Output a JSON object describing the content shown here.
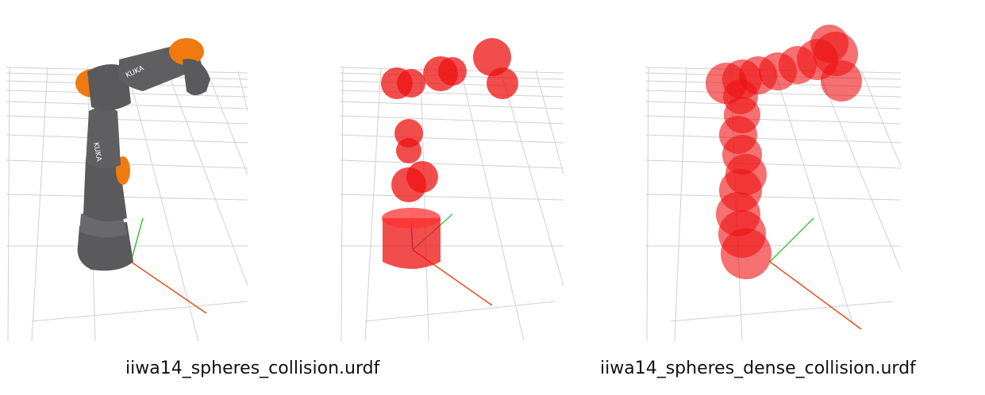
{
  "captions": {
    "sparse": "iiwa14_spheres_collision.urdf",
    "dense": "iiwa14_spheres_dense_collision.urdf"
  },
  "robot_logo_text": "KUKA",
  "colors": {
    "sphere": "#ee1111",
    "robot_body": "#5a5a5c",
    "robot_joint": "#f07a10",
    "grid": "#d0d0d0",
    "axis_red": "#e05020",
    "axis_green": "#40c040",
    "axis_blue": "#3070e0"
  },
  "icons": {
    "robot": "kuka-iiwa-robot-arm",
    "sparse": "sparse-collision-spheres",
    "dense": "dense-collision-spheres"
  }
}
